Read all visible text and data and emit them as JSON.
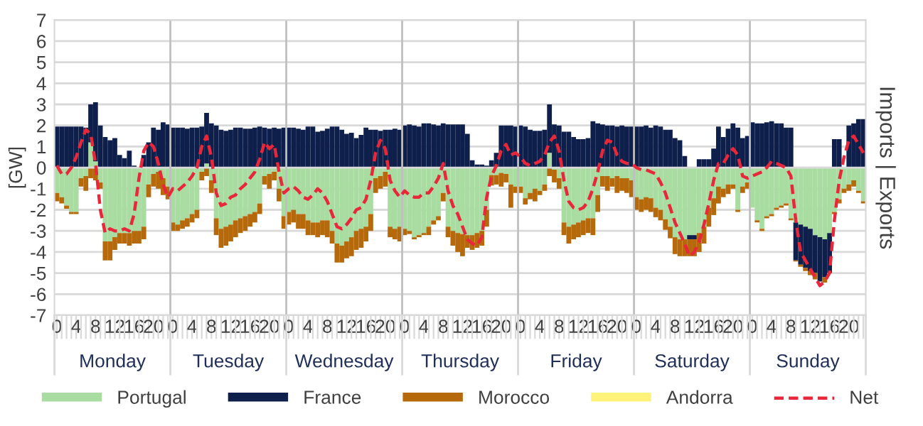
{
  "chart_data": {
    "type": "bar",
    "stacked": true,
    "ylabel": "[GW]",
    "y2label": "Imports | Exports",
    "categories": [
      "0",
      null,
      null,
      null,
      "4",
      null,
      null,
      null,
      "8",
      null,
      null,
      null,
      "12",
      null,
      null,
      null,
      "16",
      null,
      null,
      null,
      "20",
      null,
      null,
      null,
      "0",
      null,
      null,
      null,
      "4",
      null,
      null,
      null,
      "8",
      null,
      null,
      null,
      "12",
      null,
      null,
      null,
      "16",
      null,
      null,
      null,
      "20",
      null,
      null,
      null,
      "0",
      null,
      null,
      null,
      "4",
      null,
      null,
      null,
      "8",
      null,
      null,
      null,
      "12",
      null,
      null,
      null,
      "16",
      null,
      null,
      null,
      "20",
      null,
      null,
      null,
      "0",
      null,
      null,
      null,
      "4",
      null,
      null,
      null,
      "8",
      null,
      null,
      null,
      "12",
      null,
      null,
      null,
      "16",
      null,
      null,
      null,
      "20",
      null,
      null,
      null,
      "0",
      null,
      null,
      null,
      "4",
      null,
      null,
      null,
      "8",
      null,
      null,
      null,
      "12",
      null,
      null,
      null,
      "16",
      null,
      null,
      null,
      "20",
      null,
      null,
      null,
      "0",
      null,
      null,
      null,
      "4",
      null,
      null,
      null,
      "8",
      null,
      null,
      null,
      "12",
      null,
      null,
      null,
      "16",
      null,
      null,
      null,
      "20",
      null,
      null,
      null,
      "0",
      null,
      null,
      null,
      "4",
      null,
      null,
      null,
      "8",
      null,
      null,
      null,
      "12",
      null,
      null,
      null,
      "16",
      null,
      null,
      null,
      "20",
      null,
      null,
      null
    ],
    "annotations": [
      "Monday",
      "Tuesday",
      "Wednesday",
      "Thursday",
      "Friday",
      "Saturday",
      "Sunday"
    ],
    "ylim": [
      -7,
      7
    ],
    "yticks": [
      -7,
      -6,
      -5,
      -4,
      -3,
      -2,
      -1,
      0,
      1,
      2,
      3,
      4,
      5,
      6,
      7
    ],
    "grid": "y",
    "legend": "bottom",
    "series": [
      {
        "name": "Portugal",
        "color": "#a8dca0",
        "values": [
          -1.2,
          -1.4,
          -1.8,
          -2.1,
          -2.1,
          -0.5,
          -0.4,
          1.2,
          0.3,
          -0.7,
          -3.5,
          -3.5,
          -3.3,
          -3.1,
          -3.1,
          -3.1,
          -3.0,
          -3.0,
          -2.8,
          -0.8,
          -0.3,
          -0.2,
          -0.5,
          -0.9,
          -2.6,
          -2.7,
          -2.5,
          -2.4,
          -2.2,
          -2.0,
          -0.2,
          0.2,
          -0.6,
          -2.4,
          -2.9,
          -2.8,
          -2.7,
          -2.5,
          -2.4,
          -2.3,
          -2.2,
          -2.1,
          -1.7,
          -0.4,
          -0.3,
          -0.2,
          -1.0,
          -2.3,
          -2.1,
          -2.0,
          -2.2,
          -2.2,
          -2.5,
          -2.6,
          -2.6,
          -2.5,
          -2.5,
          -3.0,
          -3.6,
          -3.7,
          -3.5,
          -3.3,
          -3.0,
          -2.9,
          -2.8,
          -2.2,
          -0.5,
          -0.4,
          -0.2,
          -2.8,
          -2.9,
          -2.8,
          -2.9,
          -3.0,
          -3.3,
          -3.2,
          -3.1,
          -2.8,
          -2.5,
          -2.3,
          -1.2,
          -2.8,
          -3.0,
          -3.1,
          -3.15,
          -3.2,
          -3.2,
          -3.1,
          -3.0,
          -2.0,
          -0.35,
          -0.35,
          -0.25,
          -0.3,
          -0.8,
          -0.9,
          -0.9,
          -1.45,
          -1.2,
          -1.0,
          -1.1,
          -0.8,
          0.7,
          -0.1,
          -0.5,
          -2.6,
          -2.8,
          -2.7,
          -2.6,
          -2.5,
          -2.4,
          -2.4,
          -1.3,
          -0.4,
          -0.4,
          -0.5,
          -0.4,
          -0.5,
          -0.5,
          -0.6,
          -1.4,
          -1.5,
          -1.4,
          -1.45,
          -1.9,
          -2.0,
          -2.45,
          -2.8,
          -3.3,
          -3.4,
          -3.4,
          -3.2,
          -3.2,
          -3.1,
          -2.8,
          -1.9,
          -1.45,
          -0.9,
          -1.0,
          -0.8,
          -0.8,
          -2.0,
          -0.9,
          -0.7,
          -1.9,
          -2.5,
          -2.9,
          -2.3,
          -2.2,
          -1.9,
          -1.8,
          -1.7,
          -2.4,
          -2.6,
          -2.7,
          -2.8,
          -2.9,
          -3.2,
          -3.3,
          -3.4,
          -3.1,
          -2.1,
          -1.5,
          -1.0,
          -0.8,
          -0.6,
          -1.1,
          -1.6
        ]
      },
      {
        "name": "France",
        "color": "#0f1f4b",
        "values": [
          1.95,
          1.95,
          1.95,
          1.95,
          1.95,
          1.95,
          1.9,
          1.8,
          2.8,
          2.0,
          1.45,
          1.3,
          1.4,
          0.6,
          0.45,
          0.8,
          0.1,
          0.0,
          0.6,
          1.2,
          1.9,
          1.8,
          2.15,
          2.05,
          1.9,
          1.9,
          1.9,
          1.85,
          1.9,
          1.9,
          1.95,
          2.4,
          2.1,
          2.0,
          1.8,
          1.75,
          1.8,
          1.9,
          1.9,
          1.85,
          1.85,
          1.9,
          1.95,
          1.9,
          1.85,
          1.9,
          1.85,
          1.9,
          1.9,
          1.9,
          1.85,
          1.8,
          1.95,
          1.95,
          1.7,
          1.75,
          1.85,
          1.95,
          1.95,
          1.8,
          1.6,
          1.65,
          1.4,
          1.55,
          1.9,
          1.8,
          1.8,
          1.75,
          1.8,
          1.8,
          1.85,
          1.8,
          2.0,
          2.05,
          2.0,
          1.95,
          2.1,
          2.1,
          2.05,
          2.0,
          2.1,
          2.05,
          2.05,
          2.05,
          2.05,
          1.6,
          0.35,
          0.15,
          0.15,
          0.1,
          0.35,
          0.7,
          2.0,
          2.0,
          2.0,
          1.95,
          2.0,
          1.95,
          1.8,
          1.75,
          1.75,
          1.8,
          2.3,
          2.05,
          2.0,
          1.7,
          1.7,
          1.45,
          1.35,
          1.35,
          1.4,
          2.2,
          2.1,
          2.05,
          2.0,
          2.0,
          1.95,
          2.0,
          1.95,
          1.95,
          1.95,
          1.95,
          2.0,
          1.9,
          2.0,
          1.95,
          1.8,
          1.8,
          1.4,
          1.3,
          0.55,
          -0.2,
          -0.2,
          0.4,
          0.4,
          0.4,
          0.9,
          1.95,
          1.45,
          1.85,
          2.1,
          1.9,
          1.4,
          1.5,
          2.15,
          2.1,
          2.1,
          2.15,
          2.2,
          2.1,
          2.1,
          1.9,
          1.9,
          -1.8,
          -1.9,
          -1.95,
          -2.0,
          -1.8,
          -2.1,
          -1.8,
          -1.9,
          1.35,
          1.35,
          0.0,
          2.0,
          2.1,
          2.3,
          2.3
        ]
      },
      {
        "name": "Morocco",
        "color": "#b5690a",
        "values": [
          -0.4,
          -0.3,
          -0.15,
          -0.1,
          -0.1,
          -0.4,
          -0.7,
          -0.5,
          -0.6,
          -0.3,
          -0.9,
          -0.9,
          -0.6,
          -0.5,
          -0.5,
          -0.6,
          -0.6,
          -0.6,
          -0.6,
          -0.6,
          -0.6,
          -0.8,
          -0.8,
          -0.6,
          -0.4,
          -0.3,
          -0.4,
          -0.4,
          -0.4,
          -0.4,
          -0.4,
          -0.4,
          -0.6,
          -0.8,
          -0.9,
          -0.9,
          -0.8,
          -0.8,
          -0.7,
          -0.7,
          -0.6,
          -0.5,
          -0.5,
          -0.4,
          -0.7,
          -0.4,
          -0.6,
          -0.6,
          -0.6,
          -0.6,
          -0.7,
          -0.7,
          -0.7,
          -0.6,
          -0.7,
          -0.7,
          -0.8,
          -0.6,
          -0.9,
          -0.8,
          -0.8,
          -0.9,
          -0.9,
          -0.9,
          -0.7,
          -0.8,
          -0.7,
          -0.6,
          -0.7,
          -0.5,
          -0.5,
          -0.7,
          -0.3,
          -0.15,
          -0.1,
          -0.1,
          -0.1,
          -0.4,
          -0.2,
          -0.2,
          -0.4,
          -0.5,
          -0.7,
          -0.9,
          -1.05,
          -0.6,
          -0.7,
          -0.7,
          -0.7,
          -0.8,
          -0.5,
          -0.45,
          -0.65,
          -0.4,
          -1.1,
          -0.3,
          -0.3,
          -0.3,
          -0.3,
          -0.6,
          -0.2,
          -0.3,
          -0.4,
          -0.6,
          -0.5,
          -0.6,
          -0.8,
          -0.7,
          -0.7,
          -0.7,
          -0.7,
          -0.8,
          -0.8,
          -0.5,
          -0.7,
          -0.4,
          -0.8,
          -0.6,
          -0.7,
          -0.8,
          -0.6,
          -0.6,
          -0.6,
          -0.65,
          -0.45,
          -0.5,
          -0.5,
          -0.55,
          -0.8,
          -0.8,
          -0.8,
          -0.8,
          -0.8,
          -0.9,
          -0.8,
          -0.9,
          -0.8,
          -0.8,
          -0.4,
          -0.45,
          -0.2,
          -0.1,
          -0.3,
          -0.3,
          null,
          -0.1,
          -0.1,
          -0.1,
          -0.1,
          -0.1,
          -0.1,
          -0.1,
          -0.1,
          -0.05,
          -0.1,
          -0.15,
          -0.2,
          -0.3,
          null,
          -0.25,
          null,
          -0.1,
          -0.2,
          -0.2,
          -0.3,
          -0.3,
          -0.1,
          -0.1
        ]
      },
      {
        "name": "Andorra",
        "color": "#fff27a",
        "values": [
          0,
          0,
          0,
          0,
          0,
          0,
          0,
          0,
          0,
          0,
          0,
          0,
          0,
          0,
          0,
          0,
          0,
          0,
          0,
          0,
          0,
          0,
          0,
          0,
          0,
          0,
          0,
          0,
          0,
          0,
          0,
          0,
          0,
          0,
          0,
          0,
          0,
          0,
          0,
          0,
          0,
          0,
          0,
          0,
          0,
          0,
          0,
          0,
          0,
          0,
          0,
          0,
          0,
          0,
          0,
          0,
          0,
          0,
          0,
          0,
          0,
          0,
          0,
          0,
          0,
          0,
          0,
          0,
          0,
          0,
          0,
          0,
          0,
          0,
          0,
          0,
          0,
          0,
          0,
          0,
          0,
          0,
          0,
          0,
          0,
          0,
          0,
          0,
          0,
          0,
          0,
          0,
          0,
          0,
          0,
          0,
          0,
          0,
          0,
          0,
          0,
          0,
          0,
          0,
          0,
          0,
          0,
          0,
          0,
          0,
          0,
          0,
          0,
          0,
          0,
          0,
          0,
          0,
          0,
          0,
          0,
          0,
          0,
          0,
          0,
          0,
          0,
          0,
          0,
          0,
          0,
          0,
          0,
          0,
          0,
          0,
          0,
          0,
          0,
          0,
          0,
          0,
          0,
          0,
          0,
          0,
          0,
          0,
          0,
          0,
          0,
          0,
          0,
          0,
          0,
          0,
          0,
          0,
          0,
          0,
          0,
          0,
          0,
          0,
          0,
          0,
          0,
          0
        ]
      },
      {
        "name": "Net",
        "type": "line",
        "color": "#e8283a",
        "line_style": "dashed",
        "values": [
          0.1,
          -0.3,
          -0.3,
          0.0,
          0.5,
          1.2,
          1.8,
          1.6,
          0.2,
          -2.0,
          -3.1,
          -2.9,
          -3.0,
          -3.0,
          -2.9,
          -3.0,
          -2.2,
          -0.5,
          0.8,
          1.2,
          1.0,
          0.2,
          -0.8,
          -1.4,
          -1.0,
          -1.1,
          -0.9,
          -0.7,
          -0.4,
          0.0,
          1.0,
          1.5,
          0.5,
          -1.2,
          -1.8,
          -1.7,
          -1.4,
          -1.3,
          -1.0,
          -0.8,
          -0.5,
          -0.2,
          0.4,
          1.2,
          0.9,
          1.1,
          -0.2,
          -1.2,
          -1.0,
          -0.9,
          -1.1,
          -1.4,
          -1.5,
          -1.3,
          -1.0,
          -1.2,
          -1.6,
          -2.2,
          -2.8,
          -2.9,
          -2.7,
          -2.4,
          -2.0,
          -1.9,
          -1.5,
          -0.6,
          0.7,
          1.3,
          0.9,
          -0.6,
          -1.1,
          -1.4,
          -1.1,
          -1.3,
          -1.4,
          -1.4,
          -1.2,
          -1.2,
          -0.9,
          -0.5,
          0.2,
          -1.1,
          -1.8,
          -2.2,
          -2.8,
          -3.4,
          -3.6,
          -3.7,
          -3.3,
          -1.4,
          -0.4,
          0.1,
          0.8,
          1.1,
          0.6,
          0.7,
          0.5,
          0.2,
          0.1,
          0.2,
          0.3,
          0.6,
          1.2,
          1.5,
          0.8,
          -0.6,
          -1.6,
          -1.9,
          -2.0,
          -1.9,
          -1.6,
          -1.0,
          -0.2,
          0.8,
          1.3,
          1.2,
          0.6,
          0.3,
          0.2,
          0.2,
          0.0,
          -0.1,
          -0.1,
          -0.2,
          -0.3,
          -0.7,
          -1.2,
          -1.9,
          -2.6,
          -3.1,
          -3.6,
          -4.2,
          -4.0,
          -3.5,
          -2.7,
          -1.7,
          -0.6,
          0.2,
          0.2,
          0.6,
          0.9,
          0.6,
          -0.4,
          -0.5,
          -0.4,
          -0.3,
          -0.2,
          0.0,
          0.3,
          0.2,
          0.1,
          0.0,
          -0.4,
          -2.5,
          -4.0,
          -4.4,
          -4.8,
          -5.2,
          -5.6,
          -5.4,
          -5.0,
          -2.5,
          -0.6,
          0.5,
          1.3,
          1.5,
          1.1,
          0.7
        ]
      }
    ]
  }
}
